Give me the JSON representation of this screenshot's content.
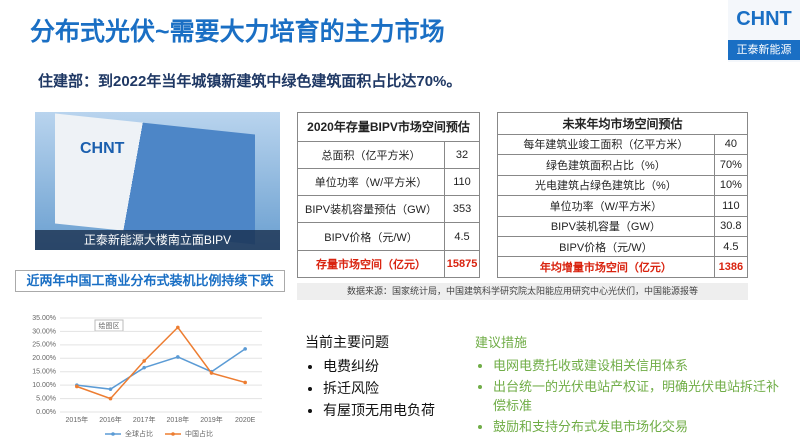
{
  "header": {
    "title": "分布式光伏~需要大力培育的主力市场",
    "logo": "CHNT",
    "logo_caption": "正泰新能源"
  },
  "subtitle": "住建部：到2022年当年城镇新建筑中绿色建筑面积占比达70%。",
  "photo": {
    "sign": "CHNT",
    "caption": "正泰新能源大楼南立面BIPV"
  },
  "table_stock": {
    "title": "2020年存量BIPV市场空间预估",
    "rows": [
      [
        "总面积（亿平方米）",
        "32"
      ],
      [
        "单位功率（W/平方米）",
        "110"
      ],
      [
        "BIPV装机容量预估（GW）",
        "353"
      ],
      [
        "BIPV价格（元/W）",
        "4.5"
      ],
      [
        "存量市场空间（亿元）",
        "15875"
      ]
    ]
  },
  "table_annual": {
    "title": "未来年均市场空间预估",
    "rows": [
      [
        "每年建筑业竣工面积（亿平方米）",
        "40"
      ],
      [
        "绿色建筑面积占比（%）",
        "70%"
      ],
      [
        "光电建筑占绿色建筑比（%）",
        "10%"
      ],
      [
        "单位功率（W/平方米）",
        "110"
      ],
      [
        "BIPV装机容量（GW）",
        "30.8"
      ],
      [
        "BIPV价格（元/W）",
        "4.5"
      ],
      [
        "年均增量市场空间（亿元）",
        "1386"
      ]
    ]
  },
  "source": "数据来源：国家统计局，中国建筑科学研究院太阳能应用研究中心光伏们，中国能源报等",
  "chart_data": {
    "type": "line",
    "title": "近两年中国工商业分布式装机比例持续下跌",
    "plot_area_label": "绘图区",
    "categories": [
      "2015年",
      "2016年",
      "2017年",
      "2018年",
      "2019年",
      "2020E"
    ],
    "series": [
      {
        "name": "全球占比",
        "color": "#5b9bd5",
        "values": [
          10,
          8.5,
          16.5,
          20.5,
          15,
          23.5
        ]
      },
      {
        "name": "中国占比",
        "color": "#ed7d31",
        "values": [
          9.5,
          5,
          19,
          31.5,
          14.5,
          11
        ]
      }
    ],
    "ylim": [
      0,
      35
    ],
    "yticks": [
      {
        "value": 0,
        "label": "0.00%"
      },
      {
        "value": 5,
        "label": "5.00%"
      },
      {
        "value": 10,
        "label": "10.00%"
      },
      {
        "value": 15,
        "label": "15.00%"
      },
      {
        "value": 20,
        "label": "20.00%"
      },
      {
        "value": 25,
        "label": "25.00%"
      },
      {
        "value": 30,
        "label": "30.00%"
      },
      {
        "value": 35,
        "label": "35.00%"
      }
    ],
    "grid": true
  },
  "issues": {
    "title": "当前主要问题",
    "items": [
      "电费纠纷",
      "拆迁风险",
      "有屋顶无用电负荷"
    ]
  },
  "measures": {
    "title": "建议措施",
    "items": [
      "电网电费托收或建设相关信用体系",
      "出台统一的光伏电站产权证，明确光伏电站拆迁补偿标准",
      "鼓励和支持分布式发电市场化交易"
    ]
  }
}
